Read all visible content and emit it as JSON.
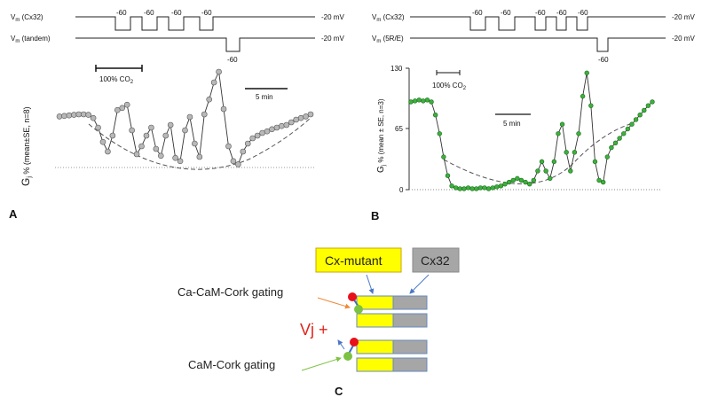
{
  "panel_a": {
    "letter": "A",
    "voltage_lines": [
      {
        "label_main": "V",
        "label_sub": "m",
        "label_rest": " (Cx32)",
        "end_label": "-20 mV",
        "steps": [
          "-60",
          "-60",
          "-60",
          "-60"
        ]
      },
      {
        "label_main": "V",
        "label_sub": "m",
        "label_rest": " (tandem)",
        "end_label": "-20 mV",
        "steps": [
          "-60"
        ]
      }
    ],
    "co2_label": "100% CO",
    "co2_sub": "2",
    "time_scale": "5 min",
    "ylabel_main": "G",
    "ylabel_sub": "j",
    "ylabel_rest": " % (mean±SE, n=8)",
    "chart_data": {
      "type": "scatter",
      "note_series": "gray markers joined by line, dashed baseline trend",
      "y": [
        96,
        97,
        98,
        99,
        100,
        100,
        99,
        93,
        75,
        48,
        30,
        60,
        108,
        112,
        118,
        70,
        25,
        40,
        60,
        75,
        35,
        22,
        60,
        80,
        18,
        12,
        70,
        95,
        45,
        20,
        100,
        128,
        160,
        180,
        110,
        40,
        12,
        6,
        30,
        45,
        55,
        60,
        65,
        68,
        72,
        75,
        78,
        80,
        85,
        90,
        93,
        96,
        100
      ]
    }
  },
  "panel_b": {
    "letter": "B",
    "voltage_lines": [
      {
        "label_main": "V",
        "label_sub": "m",
        "label_rest": " (Cx32)",
        "end_label": "-20 mV",
        "steps": [
          "-60",
          "-60",
          "-60",
          "-60",
          "-60"
        ]
      },
      {
        "label_main": "V",
        "label_sub": "m",
        "label_rest": " (5R/E)",
        "end_label": "-20 mV",
        "steps": [
          "-60"
        ]
      }
    ],
    "co2_label": "100% CO",
    "co2_sub": "2",
    "time_scale": "5 min",
    "ylabel_main": "G",
    "ylabel_sub": "j",
    "ylabel_rest": " % (mean ± SE, n=3)",
    "yticks": [
      "130",
      "65",
      "0"
    ],
    "chart_data": {
      "type": "scatter",
      "marker_color": "#3cb13c",
      "ylim": [
        0,
        130
      ],
      "y": [
        94,
        95,
        96,
        95,
        96,
        94,
        80,
        60,
        35,
        15,
        4,
        2,
        1,
        1,
        2,
        1,
        1,
        2,
        2,
        1,
        2,
        3,
        4,
        6,
        8,
        10,
        12,
        10,
        8,
        6,
        10,
        20,
        30,
        20,
        12,
        30,
        60,
        70,
        40,
        20,
        40,
        60,
        100,
        125,
        90,
        30,
        10,
        8,
        35,
        45,
        50,
        55,
        60,
        65,
        70,
        75,
        80,
        85,
        90,
        94
      ]
    }
  },
  "panel_c": {
    "letter": "C",
    "cx_mutant_label": "Cx-mutant",
    "cx32_label": "Cx32",
    "ca_cam_label": "Ca-CaM-Cork gating",
    "cam_label": "CaM-Cork gating",
    "vj_label": "Vj +",
    "colors": {
      "mutant": "#ffff00",
      "cx32": "#a6a6a6",
      "red_ball": "#e8101a",
      "green_ball": "#7cc242",
      "arrow_blue": "#4a78c8",
      "arrow_orange": "#f08a3a",
      "arrow_green": "#7cc242"
    }
  }
}
